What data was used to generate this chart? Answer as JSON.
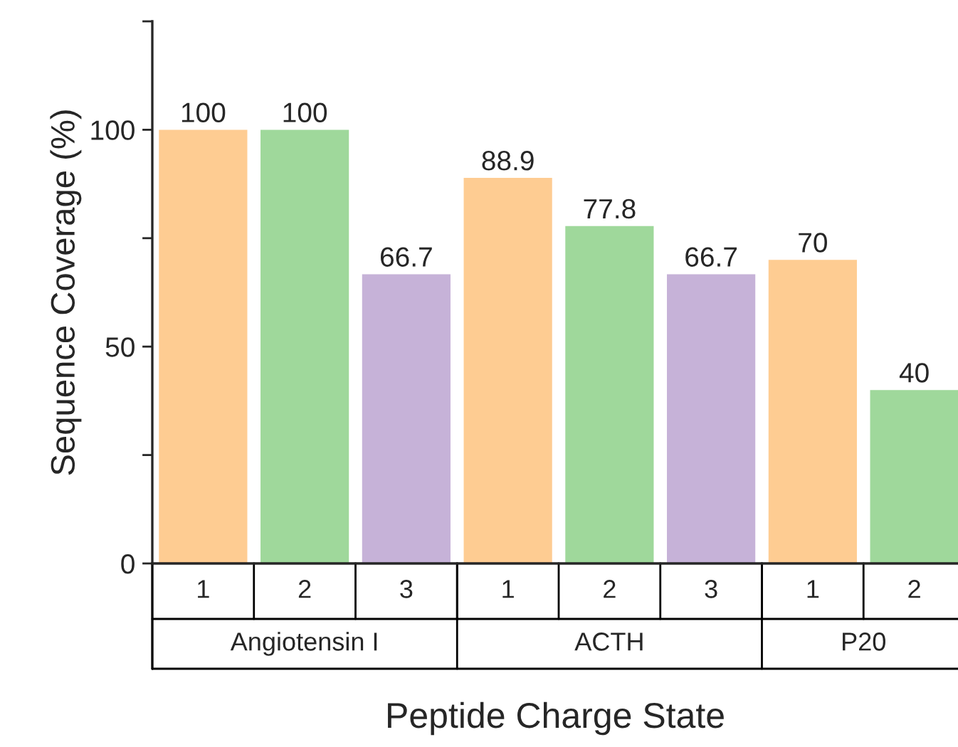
{
  "chart_data": {
    "type": "bar",
    "xlabel": "Peptide Charge State",
    "ylabel": "Sequence Coverage (%)",
    "categories": [
      "1",
      "2",
      "3",
      "1",
      "2",
      "3",
      "1",
      "2"
    ],
    "values": [
      100,
      100,
      66.7,
      88.9,
      77.8,
      66.7,
      70,
      40
    ],
    "colors": [
      "#fecc92",
      "#9fd89b",
      "#c6b2d8",
      "#fecc92",
      "#9fd89b",
      "#c6b2d8",
      "#fecc92",
      "#9fd89b"
    ],
    "annotations": [
      "Angiotensin I",
      "ACTH",
      "P20"
    ],
    "ylim": [
      0,
      125
    ],
    "yticks": [
      0,
      {
        "value": 25,
        "label": null
      },
      50,
      {
        "value": 75,
        "label": null
      },
      100,
      {
        "value": 125,
        "label": null
      }
    ],
    "data_labels": true,
    "grid": false,
    "legend": false
  }
}
